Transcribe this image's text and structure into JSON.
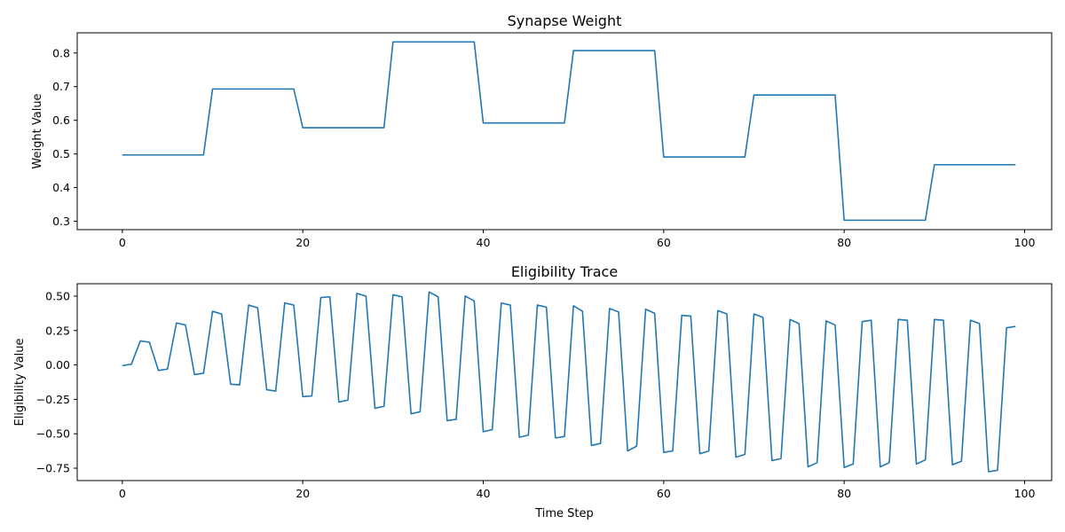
{
  "chart_data": [
    {
      "type": "line",
      "title": "Synapse Weight",
      "xlabel": "",
      "ylabel": "Weight Value",
      "xlim": [
        -5,
        103
      ],
      "ylim": [
        0.275,
        0.86
      ],
      "xticks": [
        0,
        20,
        40,
        60,
        80,
        100
      ],
      "yticks": [
        0.3,
        0.4,
        0.5,
        0.6,
        0.7,
        0.8
      ],
      "ytick_labels": [
        "0.3",
        "0.4",
        "0.5",
        "0.6",
        "0.7",
        "0.8"
      ],
      "grid": false,
      "color": "#1f77b4",
      "series": [
        {
          "x": [
            0,
            9,
            10,
            19,
            20,
            29,
            30,
            39,
            40,
            49,
            50,
            59,
            60,
            69,
            70,
            79,
            80,
            89,
            90,
            99
          ],
          "y": [
            0.497,
            0.497,
            0.693,
            0.693,
            0.578,
            0.578,
            0.833,
            0.833,
            0.592,
            0.592,
            0.807,
            0.807,
            0.491,
            0.491,
            0.675,
            0.675,
            0.303,
            0.303,
            0.468,
            0.468
          ]
        }
      ]
    },
    {
      "type": "line",
      "title": "Eligibility Trace",
      "xlabel": "Time Step",
      "ylabel": "Eligibility Value",
      "xlim": [
        -5,
        103
      ],
      "ylim": [
        -0.84,
        0.59
      ],
      "xticks": [
        0,
        20,
        40,
        60,
        80,
        100
      ],
      "yticks": [
        -0.75,
        -0.5,
        -0.25,
        0.0,
        0.25,
        0.5
      ],
      "ytick_labels": [
        "−0.75",
        "−0.50",
        "−0.25",
        "0.00",
        "0.25",
        "0.50"
      ],
      "grid": false,
      "color": "#1f77b4",
      "series": [
        {
          "x": [
            0,
            1,
            2,
            3,
            4,
            5,
            6,
            7,
            8,
            9,
            10,
            11,
            12,
            13,
            14,
            15,
            16,
            17,
            18,
            19,
            20,
            21,
            22,
            23,
            24,
            25,
            26,
            27,
            28,
            29,
            30,
            31,
            32,
            33,
            34,
            35,
            36,
            37,
            38,
            39,
            40,
            41,
            42,
            43,
            44,
            45,
            46,
            47,
            48,
            49,
            50,
            51,
            52,
            53,
            54,
            55,
            56,
            57,
            58,
            59,
            60,
            61,
            62,
            63,
            64,
            65,
            66,
            67,
            68,
            69,
            70,
            71,
            72,
            73,
            74,
            75,
            76,
            77,
            78,
            79,
            80,
            81,
            82,
            83,
            84,
            85,
            86,
            87,
            88,
            89,
            90,
            91,
            92,
            93,
            94,
            95,
            96,
            97,
            98,
            99
          ],
          "y": [
            -0.005,
            0.005,
            0.175,
            0.165,
            -0.04,
            -0.03,
            0.305,
            0.29,
            -0.07,
            -0.06,
            0.39,
            0.37,
            -0.14,
            -0.145,
            0.435,
            0.415,
            -0.18,
            -0.19,
            0.45,
            0.435,
            -0.23,
            -0.225,
            0.49,
            0.495,
            -0.27,
            -0.255,
            0.52,
            0.5,
            -0.315,
            -0.3,
            0.51,
            0.495,
            -0.355,
            -0.34,
            0.53,
            0.495,
            -0.405,
            -0.395,
            0.5,
            0.465,
            -0.485,
            -0.47,
            0.45,
            0.435,
            -0.525,
            -0.51,
            0.435,
            0.42,
            -0.53,
            -0.52,
            0.43,
            0.39,
            -0.585,
            -0.57,
            0.41,
            0.385,
            -0.625,
            -0.59,
            0.405,
            0.375,
            -0.635,
            -0.625,
            0.36,
            0.355,
            -0.645,
            -0.625,
            0.395,
            0.37,
            -0.67,
            -0.65,
            0.37,
            0.345,
            -0.695,
            -0.68,
            0.33,
            0.3,
            -0.74,
            -0.71,
            0.32,
            0.29,
            -0.745,
            -0.72,
            0.315,
            0.325,
            -0.74,
            -0.71,
            0.33,
            0.325,
            -0.72,
            -0.69,
            0.33,
            0.325,
            -0.725,
            -0.7,
            0.325,
            0.3,
            -0.775,
            -0.765,
            0.27,
            0.28
          ]
        }
      ]
    }
  ]
}
